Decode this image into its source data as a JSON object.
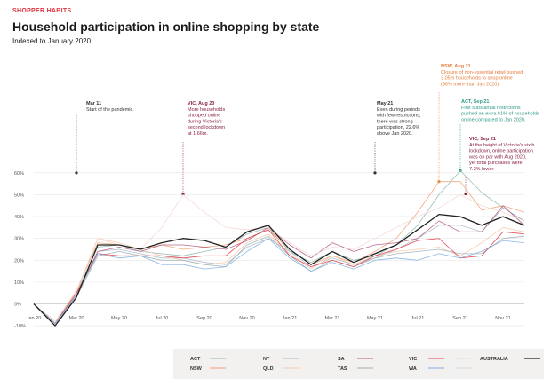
{
  "header": {
    "kicker": "SHOPPER HABITS",
    "title": "Household participation in online shopping by state",
    "subtitle": "Indexed to January 2020"
  },
  "chart_data": {
    "type": "line",
    "x": [
      "Jan 20",
      "Feb 20",
      "Mar 20",
      "Apr 20",
      "May 20",
      "Jun 20",
      "Jul 20",
      "Aug 20",
      "Sep 20",
      "Oct 20",
      "Nov 20",
      "Dec 20",
      "Jan 21",
      "Feb 21",
      "Mar 21",
      "Apr 21",
      "May 21",
      "Jun 21",
      "Jul 21",
      "Aug 21",
      "Sep 21",
      "Oct 21",
      "Nov 21",
      "Dec 21"
    ],
    "xticks": [
      "Jan 20",
      "Mar 20",
      "May 20",
      "Jul 20",
      "Sep 20",
      "Nov 20",
      "Jan 21",
      "Mar 21",
      "May 21",
      "Jul 21",
      "Sep 21",
      "Nov 21"
    ],
    "yticks": [
      -10,
      0,
      10,
      20,
      30,
      40,
      50,
      60
    ],
    "ytick_labels": [
      "-10%",
      "0%",
      "10%",
      "20%",
      "30%",
      "40%",
      "50%",
      "60%"
    ],
    "ylim": [
      -12,
      64
    ],
    "grid": true,
    "legend_position": "bottom",
    "series": [
      {
        "name": "ACT",
        "color": "#8fb8b0",
        "values": [
          0,
          -9,
          5,
          26,
          27,
          24,
          23,
          22,
          24,
          26,
          32,
          35,
          24,
          19,
          24,
          20,
          22,
          27,
          36,
          50,
          61,
          51,
          44,
          38
        ]
      },
      {
        "name": "NSW",
        "color": "#f0a070",
        "values": [
          0,
          -9,
          6,
          28,
          27,
          25,
          27,
          25,
          26,
          27,
          30,
          34,
          25,
          18,
          22,
          19,
          24,
          30,
          42,
          56,
          56,
          43,
          45,
          42
        ]
      },
      {
        "name": "NT",
        "color": "#a9b8c8",
        "values": [
          0,
          -9,
          4,
          24,
          25,
          23,
          21,
          21,
          19,
          18,
          26,
          30,
          24,
          17,
          21,
          18,
          21,
          25,
          30,
          36,
          36,
          33,
          44,
          38
        ]
      },
      {
        "name": "QLD",
        "color": "#f3c9a8",
        "values": [
          0,
          -8,
          5,
          30,
          28,
          25,
          22,
          20,
          18,
          19,
          28,
          32,
          23,
          16,
          22,
          18,
          22,
          24,
          25,
          26,
          22,
          28,
          35,
          33
        ]
      },
      {
        "name": "SA",
        "color": "#b05a80",
        "values": [
          0,
          -9,
          4,
          24,
          26,
          24,
          27,
          27,
          26,
          25,
          29,
          35,
          27,
          21,
          28,
          24,
          27,
          28,
          30,
          38,
          33,
          33,
          45,
          36
        ]
      },
      {
        "name": "TAS",
        "color": "#9fb0b8",
        "values": [
          0,
          -9,
          3,
          22,
          24,
          22,
          20,
          20,
          18,
          17,
          27,
          31,
          22,
          15,
          20,
          17,
          21,
          23,
          24,
          25,
          23,
          23,
          30,
          31
        ]
      },
      {
        "name": "VIC",
        "color": "#e04050",
        "values": [
          0,
          -9,
          5,
          23,
          22,
          22,
          22,
          21,
          22,
          22,
          30,
          34,
          22,
          17,
          20,
          17,
          22,
          25,
          29,
          30,
          21,
          22,
          33,
          32
        ]
      },
      {
        "name": "WA",
        "color": "#7fb0e0",
        "values": [
          0,
          -9,
          4,
          23,
          21,
          22,
          18,
          18,
          16,
          17,
          24,
          30,
          21,
          15,
          19,
          16,
          20,
          21,
          20,
          23,
          21,
          24,
          29,
          28
        ]
      },
      {
        "name": "",
        "color": "#f4d6d0",
        "values": [
          0,
          -8,
          6,
          30,
          27,
          25,
          35,
          50,
          42,
          35,
          34,
          35,
          28,
          22,
          26,
          25,
          30,
          35,
          40,
          44,
          50,
          45,
          42,
          38
        ]
      },
      {
        "name": "AUSTRALIA",
        "color": "#222222",
        "values": [
          0,
          -10,
          3,
          27,
          27,
          25,
          28,
          30,
          29,
          26,
          33,
          36,
          25,
          18,
          24,
          19,
          23,
          27,
          34,
          41,
          40,
          36,
          40,
          36
        ]
      }
    ],
    "annotations": [
      {
        "at": "Mar 20",
        "y": 60,
        "color": "#333333",
        "lines": [
          "Mar 11",
          "Start of the pandemic."
        ]
      },
      {
        "at": "Aug 20",
        "y": 50.4,
        "color": "#8a2045",
        "lines": [
          "VIC, Aug 20",
          "More households",
          "shopped online",
          "during Victoria's",
          "second lockdown",
          "at 1.66m."
        ]
      },
      {
        "at": "May 21",
        "y": 60,
        "color": "#333333",
        "lines": [
          "May 21",
          "Even during periods",
          "with few restrictions,",
          "there was strong",
          "participation, 22.6%",
          "above Jan 2020."
        ]
      },
      {
        "at": "Aug 21",
        "y": 56,
        "color": "#e57c3a",
        "lines": [
          "NSW, Aug 21",
          "Closure of non-essential retail pushed",
          "3.05m households to shop online",
          "(56% more than Jan 2020)."
        ]
      },
      {
        "at": "Sep 21",
        "y": 61,
        "color": "#2f9a86",
        "lines": [
          "ACT, Sep 21",
          "First substantial restrictions",
          "pushed an extra 61% of households",
          "online compared to Jan 2020."
        ]
      },
      {
        "at": "Sep 21",
        "y": 50.4,
        "color": "#8a2045",
        "lines": [
          "VIC, Sep 21",
          "At the height of Victoria's sixth",
          "lockdown, online participation",
          "was on par with Aug 2020,",
          "yet total purchases were",
          "7.2% lower."
        ]
      }
    ]
  },
  "legend": [
    {
      "name": "ACT",
      "color": "#8fb8b0",
      "col": 0,
      "row": 0
    },
    {
      "name": "NSW",
      "color": "#f0a070",
      "col": 0,
      "row": 1
    },
    {
      "name": "NT",
      "color": "#a9b8c8",
      "col": 1,
      "row": 0
    },
    {
      "name": "QLD",
      "color": "#f3c9a8",
      "col": 1,
      "row": 1
    },
    {
      "name": "SA",
      "color": "#b05a80",
      "col": 2,
      "row": 0
    },
    {
      "name": "TAS",
      "color": "#9fb0b8",
      "col": 2,
      "row": 1
    },
    {
      "name": "VIC",
      "color": "#e04050",
      "col": 3,
      "row": 0
    },
    {
      "name": "WA",
      "color": "#7fb0e0",
      "col": 3,
      "row": 1
    },
    {
      "name": "",
      "color": "#f4d6d0",
      "col": 4,
      "row": 0
    },
    {
      "name": "",
      "color": "#c8dcec",
      "col": 4,
      "row": 1
    },
    {
      "name": "AUSTRALIA",
      "color": "#222222",
      "col": 5,
      "row": 0
    }
  ]
}
